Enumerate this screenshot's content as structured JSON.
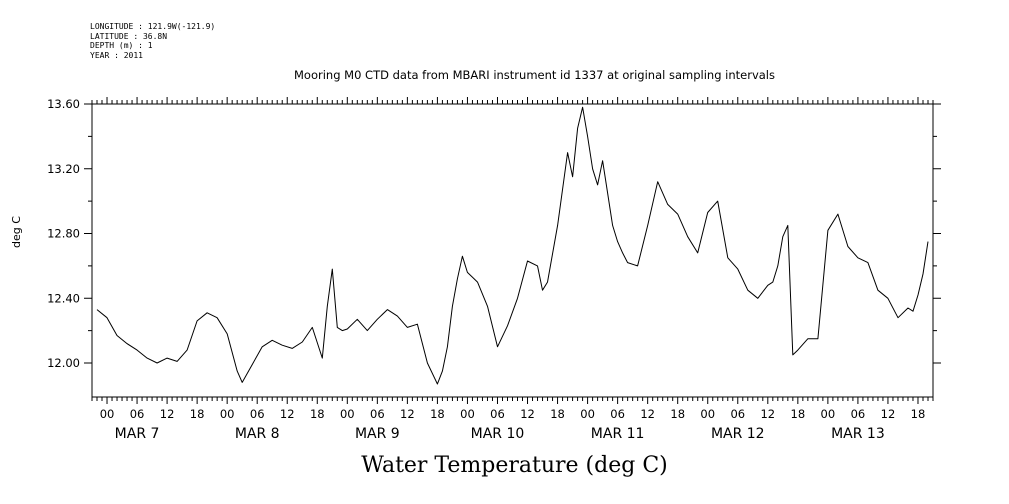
{
  "meta": {
    "longitude": "LONGITUDE : 121.9W(-121.9)",
    "latitude": "LATITUDE : 36.8N",
    "depth": "DEPTH (m) : 1",
    "year": "YEAR : 2011"
  },
  "chart_data": {
    "type": "line",
    "title": "Mooring M0 CTD data from MBARI instrument id 1337 at original sampling intervals",
    "xlabel": "Water Temperature (deg C)",
    "ylabel": "deg C",
    "ylim": [
      11.79,
      13.6
    ],
    "xlim_hours": [
      -3,
      165
    ],
    "y_ticks": [
      "12.00",
      "12.40",
      "12.80",
      "13.20",
      "13.60"
    ],
    "hour_tick_labels": [
      "00",
      "06",
      "12",
      "18"
    ],
    "day_labels": [
      "MAR  7",
      "MAR  8",
      "MAR  9",
      "MAR 10",
      "MAR 11",
      "MAR 12",
      "MAR 13"
    ],
    "grid": false,
    "series": [
      {
        "x_hours": [
          -2,
          0,
          2,
          4,
          6,
          8,
          10,
          12,
          14,
          16,
          18,
          20,
          22,
          24,
          26,
          27,
          29,
          31,
          33,
          35,
          37,
          39,
          41,
          43,
          44,
          45,
          46,
          47,
          48,
          50,
          52,
          54,
          56,
          58,
          60,
          62,
          64,
          66,
          67,
          68,
          69,
          70,
          71,
          72,
          73,
          74,
          76,
          78,
          80,
          82,
          84,
          86,
          87,
          88,
          90,
          92,
          93,
          94,
          95,
          96,
          97,
          98,
          99,
          100,
          101,
          102,
          103,
          104,
          106,
          108,
          110,
          112,
          114,
          116,
          118,
          120,
          122,
          124,
          126,
          128,
          130,
          132,
          133,
          134,
          135,
          136,
          137,
          138,
          140,
          142,
          144,
          146,
          148,
          150,
          152,
          154,
          156,
          158,
          160,
          161,
          162,
          163,
          164
        ],
        "values": [
          12.33,
          12.28,
          12.17,
          12.12,
          12.08,
          12.03,
          12.0,
          12.03,
          12.01,
          12.08,
          12.26,
          12.31,
          12.28,
          12.18,
          11.95,
          11.88,
          11.99,
          12.1,
          12.14,
          12.11,
          12.09,
          12.13,
          12.22,
          12.03,
          12.35,
          12.58,
          12.22,
          12.2,
          12.21,
          12.27,
          12.2,
          12.27,
          12.33,
          12.29,
          12.22,
          12.24,
          12.0,
          11.87,
          11.95,
          12.1,
          12.35,
          12.52,
          12.66,
          12.56,
          12.53,
          12.5,
          12.35,
          12.1,
          12.23,
          12.4,
          12.63,
          12.6,
          12.45,
          12.5,
          12.85,
          13.3,
          13.15,
          13.45,
          13.58,
          13.4,
          13.2,
          13.1,
          13.25,
          13.05,
          12.85,
          12.75,
          12.68,
          12.62,
          12.6,
          12.85,
          13.12,
          12.98,
          12.92,
          12.78,
          12.68,
          12.93,
          13.0,
          12.65,
          12.58,
          12.45,
          12.4,
          12.48,
          12.5,
          12.6,
          12.78,
          12.85,
          12.05,
          12.08,
          12.15,
          12.15,
          12.82,
          12.92,
          12.72,
          12.65,
          12.62,
          12.45,
          12.4,
          12.28,
          12.34,
          12.32,
          12.42,
          12.55,
          12.75
        ]
      }
    ]
  }
}
